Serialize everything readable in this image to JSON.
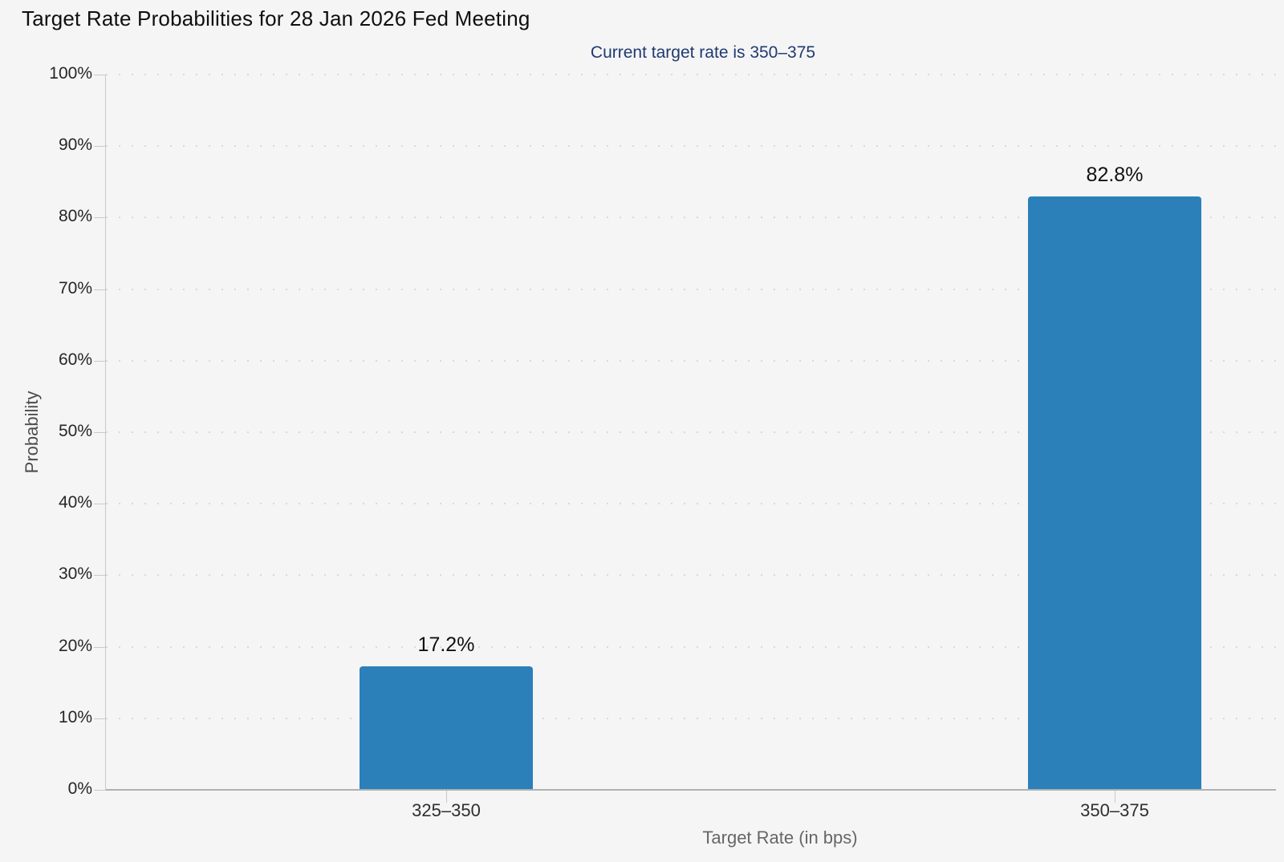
{
  "chart_data": {
    "type": "bar",
    "title": "Target Rate Probabilities for 28 Jan 2026 Fed Meeting",
    "subtitle": "Current target rate is 350–375",
    "xlabel": "Target Rate (in bps)",
    "ylabel": "Probability",
    "categories": [
      "325–350",
      "350–375"
    ],
    "values": [
      17.2,
      82.8
    ],
    "value_labels": [
      "17.2%",
      "82.8%"
    ],
    "ylim": [
      0,
      100
    ],
    "ytick_step": 10,
    "ytick_suffix": "%",
    "grid": "horizontal-dotted",
    "legend": "none",
    "colors": {
      "bar": "#2b80b9",
      "background": "#f5f5f6",
      "subtitle_text": "#203a70",
      "title_text": "#0f0f0f",
      "tick_label_text": "#262626",
      "axis_title_text": "#666666",
      "gridline": "#d9d9d9",
      "axis_line": "#b1b1b1"
    }
  }
}
